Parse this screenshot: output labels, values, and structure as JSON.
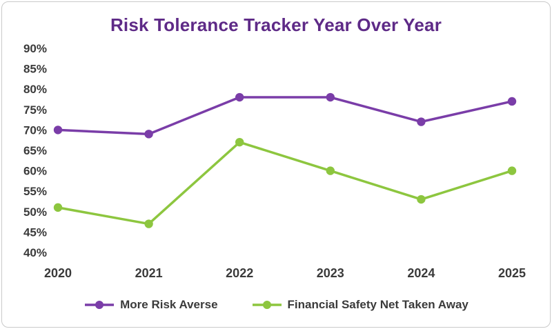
{
  "title": "Risk Tolerance Tracker Year Over Year",
  "colors": {
    "title_purple": "#5e2a87",
    "series_purple": "#7a3da8",
    "series_green": "#8dc63f",
    "axis_text": "#3a3a3a",
    "card_border": "#c9c9c9"
  },
  "chart_data": {
    "type": "line",
    "title": "Risk Tolerance Tracker Year Over Year",
    "categories": [
      "2020",
      "2021",
      "2022",
      "2023",
      "2024",
      "2025"
    ],
    "series": [
      {
        "name": "More Risk Averse",
        "color": "#7a3da8",
        "values": [
          70,
          69,
          78,
          78,
          72,
          77
        ]
      },
      {
        "name": "Financial Safety Net Taken Away",
        "color": "#8dc63f",
        "values": [
          51,
          47,
          67,
          60,
          53,
          60
        ]
      }
    ],
    "y_ticks": [
      90,
      85,
      80,
      75,
      70,
      65,
      60,
      55,
      50,
      45,
      40
    ],
    "ylim": [
      40,
      90
    ],
    "y_tick_suffix": "%",
    "grid": false,
    "legend_position": "bottom"
  },
  "legend": {
    "items": [
      {
        "label": "More Risk Averse",
        "color": "#7a3da8"
      },
      {
        "label": "Financial Safety Net Taken Away",
        "color": "#8dc63f"
      }
    ]
  }
}
